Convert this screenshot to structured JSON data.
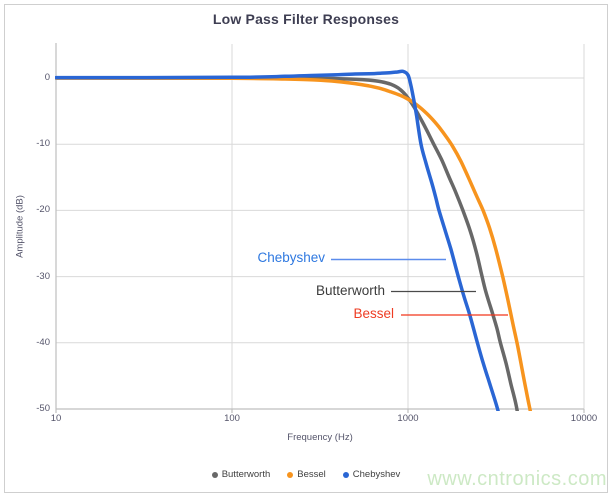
{
  "title": "Low Pass Filter Responses",
  "watermark": "www.cntronics.com",
  "axes": {
    "x_label": "Frequency (Hz)",
    "y_label": "Amplitude (dB)",
    "x_ticks": [
      "10",
      "100",
      "1000",
      "10000"
    ],
    "y_ticks": [
      "0",
      "-10",
      "-20",
      "-30",
      "-40",
      "-50"
    ],
    "axis_color": "#bfbfbf",
    "grid_color": "#d9d9d9"
  },
  "annotations": [
    {
      "label": "Chebyshev",
      "color": "#2e78e0",
      "line_color": "#5b8cec"
    },
    {
      "label": "Butterworth",
      "color": "#3c3c3c",
      "line_color": "#4a4a4a"
    },
    {
      "label": "Bessel",
      "color": "#ee3c23",
      "line_color": "#f2361b"
    }
  ],
  "chart_data": {
    "type": "line",
    "title": "Low Pass Filter Responses",
    "xlabel": "Frequency (Hz)",
    "ylabel": "Amplitude (dB)",
    "x_scale": "log",
    "xlim": [
      10,
      10000
    ],
    "ylim": [
      -50,
      0
    ],
    "grid": true,
    "legend_position": "bottom",
    "series": [
      {
        "name": "Butterworth",
        "color": "#686868",
        "points": [
          [
            10,
            0
          ],
          [
            100,
            0
          ],
          [
            200,
            -0.02
          ],
          [
            300,
            -0.05
          ],
          [
            400,
            -0.1
          ],
          [
            500,
            -0.18
          ],
          [
            600,
            -0.32
          ],
          [
            700,
            -0.55
          ],
          [
            800,
            -0.95
          ],
          [
            900,
            -1.7
          ],
          [
            1000,
            -3
          ],
          [
            1100,
            -4.7
          ],
          [
            1200,
            -6.5
          ],
          [
            1300,
            -8.3
          ],
          [
            1400,
            -10
          ],
          [
            1550,
            -12.3
          ],
          [
            1700,
            -14.8
          ],
          [
            1870,
            -17.3
          ],
          [
            2050,
            -20
          ],
          [
            2250,
            -23
          ],
          [
            2450,
            -26.4
          ],
          [
            2600,
            -29.3
          ],
          [
            2750,
            -32
          ],
          [
            3000,
            -35.3
          ],
          [
            3200,
            -37.8
          ],
          [
            3350,
            -40
          ],
          [
            3600,
            -43
          ],
          [
            3850,
            -46.3
          ],
          [
            4100,
            -49.2
          ],
          [
            4250,
            -51.5
          ]
        ]
      },
      {
        "name": "Bessel",
        "color": "#f7941e",
        "points": [
          [
            10,
            0
          ],
          [
            100,
            -0.05
          ],
          [
            200,
            -0.15
          ],
          [
            300,
            -0.3
          ],
          [
            400,
            -0.55
          ],
          [
            500,
            -0.85
          ],
          [
            600,
            -1.2
          ],
          [
            700,
            -1.6
          ],
          [
            800,
            -2.1
          ],
          [
            900,
            -2.6
          ],
          [
            1000,
            -3.2
          ],
          [
            1100,
            -3.9
          ],
          [
            1200,
            -4.7
          ],
          [
            1350,
            -6
          ],
          [
            1500,
            -7.4
          ],
          [
            1650,
            -8.9
          ],
          [
            1800,
            -10.4
          ],
          [
            2000,
            -12.6
          ],
          [
            2200,
            -15
          ],
          [
            2450,
            -17.8
          ],
          [
            2670,
            -20
          ],
          [
            2900,
            -22.6
          ],
          [
            3150,
            -25.8
          ],
          [
            3450,
            -30
          ],
          [
            3700,
            -33.6
          ],
          [
            3950,
            -37.2
          ],
          [
            4200,
            -40.5
          ],
          [
            4450,
            -44
          ],
          [
            4700,
            -47.3
          ],
          [
            4950,
            -50.3
          ],
          [
            5050,
            -51.8
          ]
        ]
      },
      {
        "name": "Chebyshev",
        "color": "#2a66d4",
        "points": [
          [
            10,
            0.05
          ],
          [
            100,
            0.1
          ],
          [
            200,
            0.25
          ],
          [
            300,
            0.4
          ],
          [
            400,
            0.5
          ],
          [
            500,
            0.6
          ],
          [
            600,
            0.65
          ],
          [
            700,
            0.72
          ],
          [
            800,
            0.82
          ],
          [
            870,
            0.9
          ],
          [
            940,
            1.0
          ],
          [
            1000,
            0.45
          ],
          [
            1040,
            -1.2
          ],
          [
            1080,
            -3.4
          ],
          [
            1120,
            -5.8
          ],
          [
            1185,
            -10
          ],
          [
            1260,
            -12.7
          ],
          [
            1350,
            -15.4
          ],
          [
            1430,
            -17.8
          ],
          [
            1500,
            -20
          ],
          [
            1620,
            -22.9
          ],
          [
            1750,
            -25.8
          ],
          [
            1930,
            -30
          ],
          [
            2080,
            -33
          ],
          [
            2250,
            -35.9
          ],
          [
            2480,
            -40
          ],
          [
            2650,
            -42.7
          ],
          [
            2850,
            -45.4
          ],
          [
            3080,
            -48.2
          ],
          [
            3250,
            -50.3
          ],
          [
            3320,
            -51.8
          ]
        ]
      }
    ]
  }
}
